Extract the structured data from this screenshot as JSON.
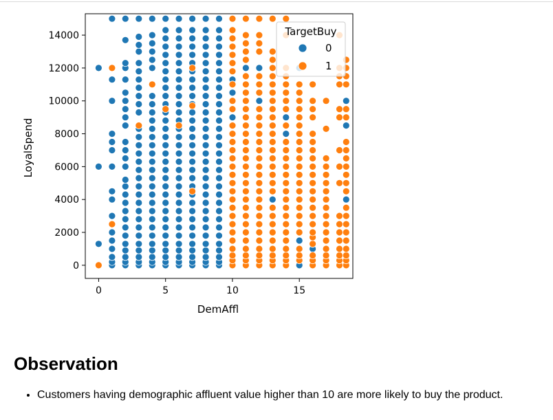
{
  "chart_data": {
    "type": "scatter",
    "xlabel": "DemAffl",
    "ylabel": "LoyalSpend",
    "xlim": [
      -1,
      19
    ],
    "ylim": [
      -800,
      15300
    ],
    "x_ticks": [
      0,
      5,
      10,
      15
    ],
    "y_ticks": [
      0,
      2000,
      4000,
      6000,
      8000,
      10000,
      12000,
      14000
    ],
    "legend": {
      "title": "TargetBuy",
      "placement": "top-right"
    },
    "series": [
      {
        "name": "0",
        "color": "#1f77b4",
        "columns": [
          {
            "x": 0,
            "y": [
              0,
              1300,
              6000,
              12000
            ]
          },
          {
            "x": 1,
            "y": [
              0,
              200,
              500,
              1000,
              1500,
              2000,
              3000,
              4000,
              4500,
              6000,
              7000,
              7500,
              8000,
              10000,
              11300,
              12000,
              15000
            ]
          },
          {
            "x": 2,
            "y": [
              0,
              200,
              500,
              900,
              1300,
              1800,
              2300,
              2800,
              3300,
              3800,
              4300,
              4800,
              5200,
              6000,
              6500,
              7000,
              7500,
              8500,
              9000,
              9500,
              10000,
              10500,
              11300,
              12000,
              12300,
              13700,
              15000
            ]
          },
          {
            "x": 3,
            "y": [
              0,
              200,
              500,
              900,
              1300,
              1800,
              2300,
              2800,
              3300,
              3800,
              4300,
              4800,
              5300,
              5800,
              6300,
              6800,
              7300,
              7800,
              8300,
              9300,
              9800,
              10300,
              10800,
              11300,
              11800,
              12300,
              13000,
              13400,
              13900,
              15000
            ]
          },
          {
            "x": 4,
            "y": [
              0,
              200,
              500,
              900,
              1300,
              1800,
              2300,
              2800,
              3300,
              3800,
              4300,
              4800,
              5300,
              5800,
              6300,
              6800,
              7300,
              7800,
              8300,
              8800,
              9300,
              9800,
              10300,
              12000,
              12500,
              13000,
              13500,
              14000,
              15000
            ]
          },
          {
            "x": 5,
            "y": [
              0,
              200,
              500,
              900,
              1300,
              1800,
              2300,
              2800,
              3300,
              3800,
              4300,
              4800,
              5300,
              5800,
              6300,
              6800,
              7300,
              7800,
              8300,
              8800,
              9300,
              9800,
              10300,
              10800,
              11300,
              11800,
              12300,
              12800,
              13300,
              13800,
              14300,
              15000
            ]
          },
          {
            "x": 6,
            "y": [
              0,
              200,
              500,
              900,
              1300,
              1800,
              2300,
              2800,
              3300,
              3800,
              4300,
              4800,
              5300,
              5800,
              6300,
              6800,
              7300,
              7800,
              8300,
              8800,
              9300,
              9800,
              10300,
              10800,
              11300,
              11800,
              12300,
              12800,
              13300,
              13800,
              14300,
              15000
            ]
          },
          {
            "x": 7,
            "y": [
              0,
              200,
              500,
              900,
              1300,
              1800,
              2300,
              2800,
              3300,
              3800,
              4300,
              4800,
              5300,
              5800,
              6300,
              6800,
              7300,
              7800,
              8300,
              8800,
              9300,
              9800,
              10300,
              10800,
              11300,
              11800,
              12300,
              12800,
              13300,
              13800,
              14300,
              15000
            ]
          },
          {
            "x": 8,
            "y": [
              0,
              200,
              500,
              900,
              1300,
              1800,
              2300,
              2800,
              3300,
              3800,
              4300,
              4800,
              5300,
              5800,
              6300,
              6800,
              7300,
              7800,
              8300,
              8800,
              9300,
              9800,
              10300,
              10800,
              11300,
              11800,
              12300,
              12800,
              13300,
              13800,
              14300,
              15000
            ]
          },
          {
            "x": 9,
            "y": [
              0,
              200,
              500,
              900,
              1300,
              1800,
              2300,
              2800,
              3300,
              3800,
              4300,
              4800,
              5300,
              5800,
              6300,
              6800,
              7300,
              7800,
              8300,
              8800,
              9300,
              9800,
              10300,
              10800,
              11300,
              11800,
              12300,
              12800,
              13300,
              13800,
              14300,
              15000
            ]
          },
          {
            "x": 10,
            "y": [
              9000,
              10500,
              11300
            ]
          },
          {
            "x": 11,
            "y": [
              12000
            ]
          },
          {
            "x": 12,
            "y": [
              10000,
              12000
            ]
          },
          {
            "x": 13,
            "y": [
              4000
            ]
          },
          {
            "x": 14,
            "y": [
              8000,
              9000
            ]
          },
          {
            "x": 15,
            "y": [
              0,
              1500,
              12000
            ]
          },
          {
            "x": 16,
            "y": [
              1000
            ]
          },
          {
            "x": 18.5,
            "y": [
              4000,
              8500,
              10000
            ]
          }
        ]
      },
      {
        "name": "1",
        "color": "#ff7f0e",
        "columns": [
          {
            "x": 0,
            "y": [
              0
            ]
          },
          {
            "x": 1,
            "y": [
              2500,
              12000
            ]
          },
          {
            "x": 3,
            "y": [
              8500
            ]
          },
          {
            "x": 4,
            "y": [
              11000
            ]
          },
          {
            "x": 5,
            "y": [
              9500
            ]
          },
          {
            "x": 6,
            "y": [
              8500
            ]
          },
          {
            "x": 7,
            "y": [
              4500,
              9700,
              12000
            ]
          },
          {
            "x": 10,
            "y": [
              0,
              300,
              600,
              1000,
              1500,
              2000,
              2500,
              3000,
              3500,
              4000,
              4500,
              5000,
              5500,
              6000,
              6500,
              7000,
              7500,
              8000,
              8500,
              9500,
              10000,
              11000,
              11800,
              12300,
              12800,
              13300,
              13800,
              14300,
              15000
            ]
          },
          {
            "x": 11,
            "y": [
              0,
              300,
              600,
              1000,
              1500,
              2000,
              2500,
              3000,
              3500,
              4000,
              4500,
              5000,
              5500,
              6000,
              6500,
              7000,
              7500,
              8000,
              8500,
              9000,
              9500,
              10000,
              10500,
              11000,
              11500,
              12500,
              13000,
              13500,
              14000,
              15000
            ]
          },
          {
            "x": 12,
            "y": [
              0,
              300,
              600,
              1000,
              1500,
              2000,
              2500,
              3000,
              3500,
              4000,
              4500,
              5000,
              5500,
              6000,
              6500,
              7000,
              7500,
              8000,
              8500,
              9000,
              9500,
              10500,
              11000,
              11500,
              13000,
              13500,
              14000,
              15000
            ]
          },
          {
            "x": 13,
            "y": [
              0,
              300,
              600,
              1000,
              1500,
              2000,
              2500,
              3000,
              3500,
              4500,
              5000,
              5500,
              6000,
              6500,
              7000,
              7500,
              8000,
              8500,
              9000,
              9500,
              10000,
              10500,
              11000,
              11500,
              12000,
              12500,
              13000,
              15000
            ]
          },
          {
            "x": 14,
            "y": [
              0,
              300,
              600,
              1000,
              1500,
              2000,
              2500,
              3000,
              3500,
              4000,
              4500,
              5000,
              5500,
              6000,
              6500,
              7000,
              7500,
              8500,
              9500,
              10000,
              10500,
              11000,
              11500,
              12000,
              14000,
              15000
            ]
          },
          {
            "x": 15,
            "y": [
              300,
              600,
              1000,
              2000,
              2500,
              3000,
              3500,
              4000,
              4500,
              5000,
              5500,
              6000,
              6500,
              7000,
              7500,
              8000,
              8500,
              9000,
              9500,
              10000,
              10500,
              11000
            ]
          },
          {
            "x": 16,
            "y": [
              0,
              300,
              600,
              1300,
              1700,
              2000,
              2500,
              3000,
              3500,
              4000,
              4500,
              5000,
              5500,
              6000,
              6500,
              7000,
              7500,
              8000,
              9000,
              9500,
              10000,
              11000
            ]
          },
          {
            "x": 17,
            "y": [
              0,
              300,
              600,
              1000,
              1500,
              2000,
              2500,
              3000,
              3500,
              4000,
              4500,
              5000,
              5500,
              6000,
              6500,
              8300,
              10000
            ]
          },
          {
            "x": 18,
            "y": [
              0,
              300,
              600,
              1000,
              1500,
              2000,
              2500,
              3000,
              5000,
              6000,
              7000,
              9000,
              9500,
              11000,
              11500,
              12000,
              14000
            ]
          },
          {
            "x": 18.5,
            "y": [
              0,
              300,
              600,
              1000,
              1500,
              2000,
              2500,
              3000,
              3500,
              4500,
              5000,
              5500,
              6000,
              6500,
              7000,
              7500,
              9000,
              9500,
              11000,
              11500,
              12000,
              12500
            ]
          }
        ]
      }
    ]
  },
  "notes": {
    "title": "Observation",
    "items": [
      "Customers having demographic affluent value higher than 10 are more likely to buy the product."
    ]
  }
}
